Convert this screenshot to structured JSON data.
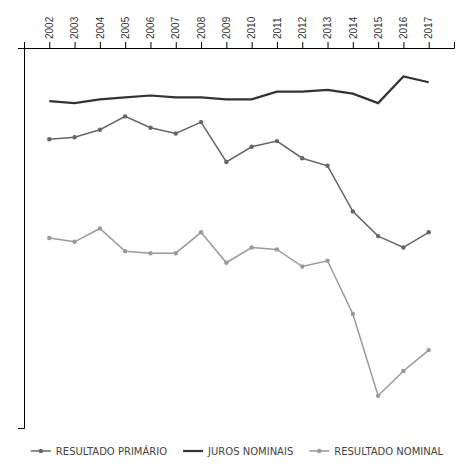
{
  "chart_data": {
    "type": "line",
    "x": [
      2002,
      2003,
      2004,
      2005,
      2006,
      2007,
      2008,
      2009,
      2010,
      2011,
      2012,
      2013,
      2014,
      2015,
      2016,
      2017
    ],
    "series": [
      {
        "name": "RESULTADO PRIMÁRIO",
        "color": "#666666",
        "marker": "circle",
        "values": [
          3.2,
          3.3,
          3.7,
          4.4,
          3.8,
          3.5,
          4.1,
          2.0,
          2.8,
          3.1,
          2.2,
          1.8,
          -0.6,
          -1.9,
          -2.5,
          -1.7
        ]
      },
      {
        "name": "JUROS NOMINAIS",
        "color": "#333333",
        "values": [
          5.2,
          5.1,
          5.3,
          5.4,
          5.5,
          5.4,
          5.4,
          5.3,
          5.3,
          5.7,
          5.7,
          5.8,
          5.6,
          5.1,
          6.5,
          6.2
        ]
      },
      {
        "name": "RESULTADO NOMINAL",
        "color": "#999999",
        "marker": "circle",
        "values": [
          -2.0,
          -2.2,
          -1.5,
          -2.7,
          -2.8,
          -2.8,
          -1.7,
          -3.3,
          -2.5,
          -2.6,
          -3.5,
          -3.2,
          -6.0,
          -10.3,
          -9.0,
          -7.9
        ]
      }
    ],
    "xlim": [
      2001,
      2018
    ],
    "xticks": [
      2002,
      2003,
      2004,
      2005,
      2006,
      2007,
      2008,
      2009,
      2010,
      2011,
      2012,
      2013,
      2014,
      2015,
      2016,
      2017
    ],
    "ylim": [
      -12,
      8
    ],
    "yticks": [],
    "grid": false,
    "tick_labels": "x",
    "legend": "bottom"
  }
}
